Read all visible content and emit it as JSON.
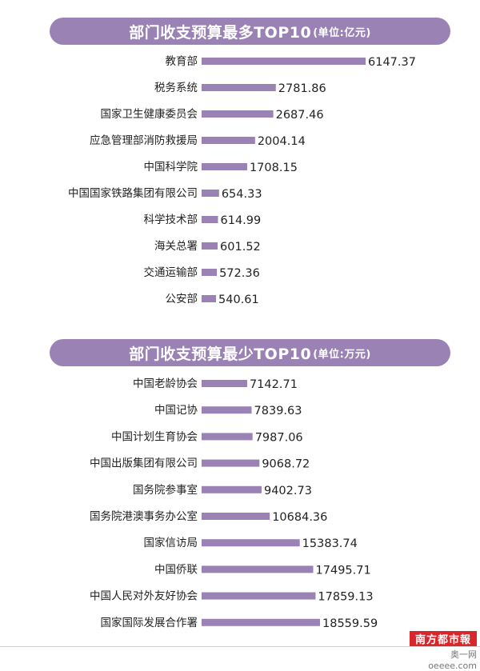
{
  "chart_data": [
    {
      "type": "bar",
      "orientation": "horizontal",
      "title": "部门收支预算最多TOP10",
      "unit": "(单位:亿元)",
      "categories": [
        "教育部",
        "税务系统",
        "国家卫生健康委员会",
        "应急管理部消防救援局",
        "中国科学院",
        "中国国家铁路集团有限公司",
        "科学技术部",
        "海关总署",
        "交通运输部",
        "公安部"
      ],
      "values": [
        6147.37,
        2781.86,
        2687.46,
        2004.14,
        1708.15,
        654.33,
        614.99,
        601.52,
        572.36,
        540.61
      ],
      "value_labels": [
        "6147.37",
        "2781.86",
        "2687.46",
        "2004.14",
        "1708.15",
        "654.33",
        "614.99",
        "601.52",
        "572.36",
        "540.61"
      ],
      "bar_color": "#9a82b5"
    },
    {
      "type": "bar",
      "orientation": "horizontal",
      "title": "部门收支预算最少TOP10",
      "unit": "(单位:万元)",
      "categories": [
        "中国老龄协会",
        "中国记协",
        "中国计划生育协会",
        "中国出版集团有限公司",
        "国务院参事室",
        "国务院港澳事务办公室",
        "国家信访局",
        "中国侨联",
        "中国人民对外友好协会",
        "国家国际发展合作署"
      ],
      "values": [
        7142.71,
        7839.63,
        7987.06,
        9068.72,
        9402.73,
        10684.36,
        15383.74,
        17495.71,
        17859.13,
        18559.59
      ],
      "value_labels": [
        "7142.71",
        "7839.63",
        "7987.06",
        "9068.72",
        "9402.73",
        "10684.36",
        "15383.74",
        "17495.71",
        "17859.13",
        "18559.59"
      ],
      "bar_color": "#9a82b5"
    }
  ],
  "footer": {
    "logo": "南方都市報",
    "source": "奥一网oeeee.com",
    "logo_color": "#d9262a"
  }
}
